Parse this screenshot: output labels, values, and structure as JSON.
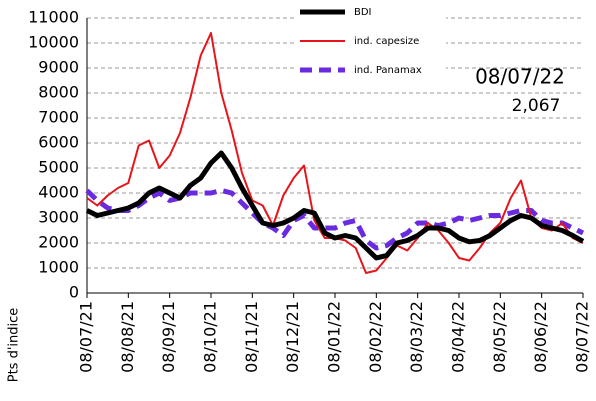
{
  "chart_data": {
    "type": "line",
    "y_label": "Pts d'indice",
    "annotations": [
      "08/07/22",
      "2,067"
    ],
    "categories": [
      "08/07/21",
      null,
      null,
      null,
      "08/08/21",
      null,
      null,
      null,
      "08/09/21",
      null,
      null,
      null,
      "08/10/21",
      null,
      null,
      null,
      "08/11/21",
      null,
      null,
      null,
      "08/12/21",
      null,
      null,
      null,
      "08/01/22",
      null,
      null,
      null,
      "08/02/22",
      null,
      null,
      null,
      "08/03/22",
      null,
      null,
      null,
      "08/04/22",
      null,
      null,
      null,
      "08/05/22",
      null,
      null,
      null,
      "08/06/22",
      null,
      null,
      null,
      "08/07/22"
    ],
    "series": [
      {
        "name": "BDI",
        "color": "#000000",
        "line_style": "solid",
        "values": [
          3300,
          3100,
          3200,
          3300,
          3400,
          3600,
          4000,
          4200,
          4000,
          3800,
          4300,
          4600,
          5200,
          5600,
          5000,
          4200,
          3500,
          2800,
          2700,
          2800,
          3000,
          3300,
          3200,
          2400,
          2200,
          2300,
          2200,
          1800,
          1400,
          1500,
          2000,
          2100,
          2300,
          2600,
          2600,
          2500,
          2200,
          2050,
          2100,
          2300,
          2600,
          2900,
          3100,
          3000,
          2700,
          2600,
          2500,
          2300,
          2067
        ]
      },
      {
        "name": "ind. capesize",
        "color": "#e8141b",
        "line_style": "solid",
        "values": [
          3800,
          3500,
          3900,
          4200,
          4400,
          5900,
          6100,
          5000,
          5500,
          6400,
          7800,
          9500,
          10400,
          8000,
          6500,
          4800,
          3700,
          3500,
          2700,
          3900,
          4600,
          5100,
          2900,
          2200,
          2200,
          2100,
          1800,
          800,
          900,
          1400,
          1900,
          1700,
          2200,
          2800,
          2500,
          2000,
          1400,
          1300,
          1800,
          2400,
          2800,
          3800,
          4500,
          3000,
          2600,
          2500,
          2800,
          2200,
          2000
        ]
      },
      {
        "name": "ind. Panamax",
        "color": "#6a2be0",
        "line_style": "dashed",
        "values": [
          4100,
          3700,
          3400,
          3300,
          3300,
          3500,
          3800,
          4000,
          3700,
          3800,
          4000,
          4000,
          4000,
          4100,
          4000,
          3600,
          3200,
          2800,
          2600,
          2300,
          2900,
          3100,
          2600,
          2600,
          2600,
          2800,
          2900,
          2100,
          1800,
          1900,
          2200,
          2400,
          2800,
          2800,
          2700,
          2800,
          3000,
          2900,
          3000,
          3100,
          3100,
          3200,
          3300,
          3300,
          2900,
          2800,
          2800,
          2600,
          2400
        ]
      }
    ],
    "ylim": [
      0,
      11000
    ],
    "yticks": [
      0,
      1000,
      2000,
      3000,
      4000,
      5000,
      6000,
      7000,
      8000,
      9000,
      10000,
      11000
    ],
    "grid": true
  }
}
